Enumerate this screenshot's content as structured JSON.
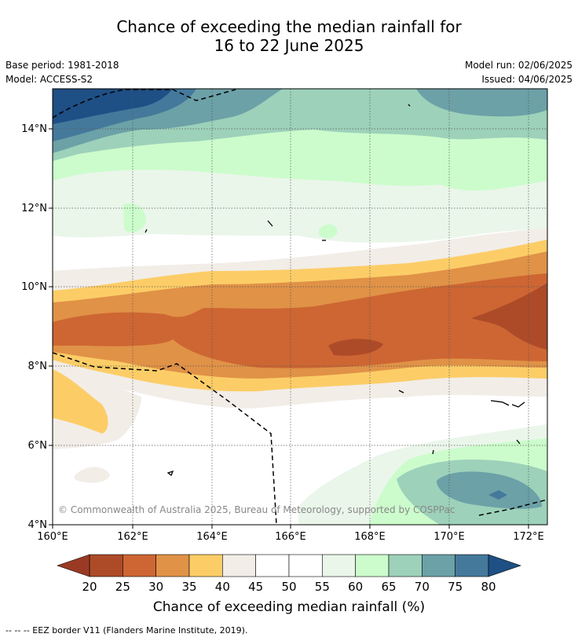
{
  "header": {
    "title_line1": "Chance of exceeding the median rainfall for",
    "title_line2": "16 to 22 June 2025"
  },
  "info": {
    "base_period": "Base period: 1981-2018",
    "model": "Model: ACCESS-S2",
    "model_run": "Model run: 02/06/2025",
    "issued": "Issued: 04/06/2025"
  },
  "map": {
    "lat_labels": [
      "14°N",
      "12°N",
      "10°N",
      "8°N",
      "6°N",
      "4°N"
    ],
    "lon_labels": [
      "160°E",
      "162°E",
      "164°E",
      "166°E",
      "168°E",
      "170°E",
      "172°E"
    ],
    "copyright": "© Commonwealth of Australia 2025, Bureau of Meteorology, supported by COSPPac"
  },
  "legend": {
    "tick_labels": [
      "20",
      "25",
      "30",
      "35",
      "40",
      "45",
      "50",
      "55",
      "60",
      "65",
      "70",
      "75",
      "80"
    ],
    "colors": [
      "#ad4b29",
      "#cd6633",
      "#e09247",
      "#fccd67",
      "#f2ede7",
      "#ffffff",
      "#ffffff",
      "#eaf6ea",
      "#ccfccc",
      "#9dd1ba",
      "#6ba1a7",
      "#45799b"
    ],
    "under_color": "#9b3a24",
    "over_color": "#1e4f85",
    "label": "Chance of exceeding median rainfall (%)"
  },
  "footnote": "--  --  -- EEZ border V11 (Flanders Marine Institute, 2019)."
}
